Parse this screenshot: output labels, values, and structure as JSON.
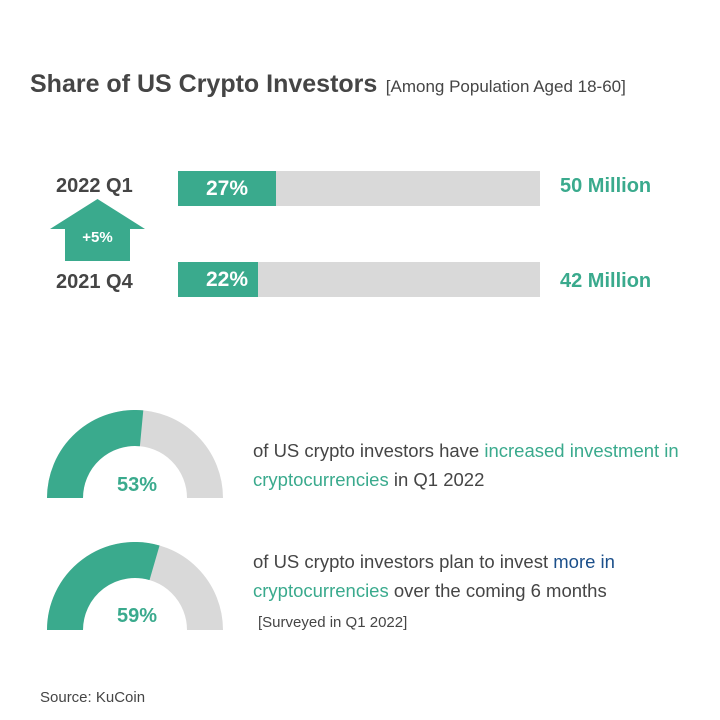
{
  "header": {
    "title": "Share of US Crypto Investors",
    "subtitle": "[Among Population Aged 18-60]"
  },
  "chart_data": [
    {
      "type": "bar",
      "title": "Share of US Crypto Investors",
      "subtitle": "[Among Population Aged 18-60]",
      "categories": [
        "2022 Q1",
        "2021 Q4"
      ],
      "values": [
        27,
        22
      ],
      "value_labels": [
        "27%",
        "22%"
      ],
      "secondary_labels": [
        "50 Million",
        "42 Million"
      ],
      "xlim": [
        0,
        100
      ],
      "annotation": "+5%",
      "colors": {
        "fill": "#3aaa8d",
        "track": "#d9d9d9"
      }
    },
    {
      "type": "pie",
      "style": "semicircle-gauge",
      "value": 53,
      "label": "53%",
      "colors": {
        "fill": "#3aaa8d",
        "track": "#d9d9d9"
      }
    },
    {
      "type": "pie",
      "style": "semicircle-gauge",
      "value": 59,
      "label": "59%",
      "colors": {
        "fill": "#3aaa8d",
        "track": "#d9d9d9"
      }
    }
  ],
  "stats": [
    {
      "text_before": "of US crypto investors have ",
      "highlight": "increased investment in cryptocurrencies",
      "text_after": " in Q1 2022"
    },
    {
      "text_before": "of US crypto investors plan to invest ",
      "highlight_blue": "more in",
      "highlight": "cryptocurrencies",
      "text_after": " over the coming 6 months"
    }
  ],
  "note": "[Surveyed in Q1 2022]",
  "source": "Source: KuCoin",
  "colors": {
    "accent": "#3aaa8d",
    "track": "#d9d9d9",
    "text": "#454545",
    "highlight_blue": "#1b4f8a"
  }
}
